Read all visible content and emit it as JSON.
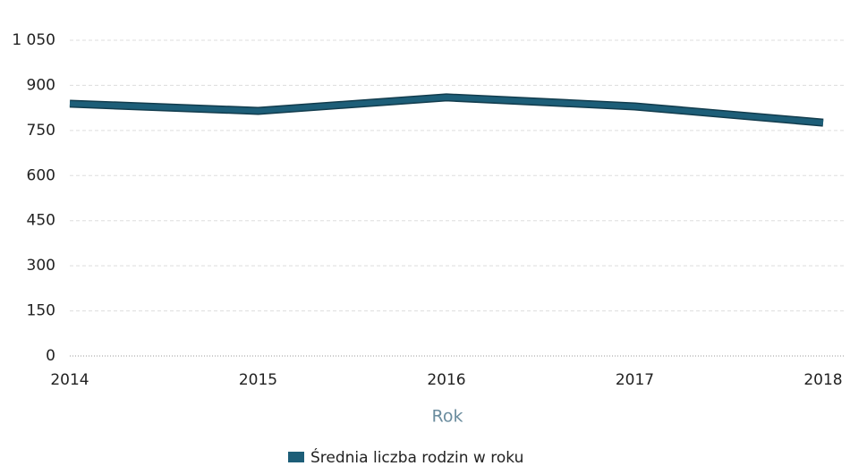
{
  "chart_data": {
    "type": "line",
    "x": [
      2014,
      2015,
      2016,
      2017,
      2018
    ],
    "xlim": [
      2014,
      2018
    ],
    "xticks": [
      2014,
      2015,
      2016,
      2017,
      2018
    ],
    "xlabel": "Rok",
    "series": [
      {
        "name": "Średnia liczba rodzin w roku",
        "color": "#1d5e78",
        "values": [
          839,
          815,
          860,
          830,
          776
        ]
      }
    ],
    "ylim": [
      0,
      1050
    ],
    "yticks": [
      0,
      150,
      300,
      450,
      600,
      750,
      900,
      {
        "value": 1050,
        "label": "1 050"
      }
    ],
    "grid": true,
    "legend": "bottom"
  }
}
